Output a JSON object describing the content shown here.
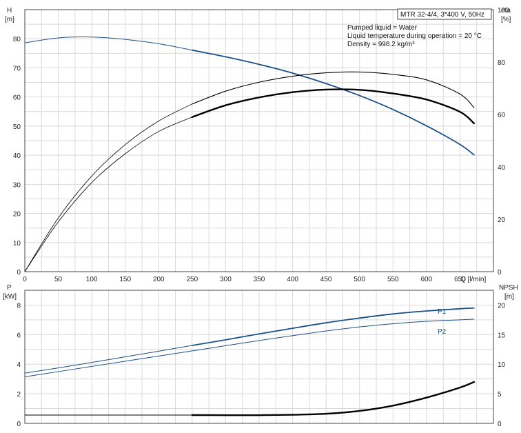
{
  "chart_data": [
    {
      "type": "line",
      "x": [
        0,
        50,
        100,
        150,
        200,
        250,
        300,
        350,
        400,
        450,
        500,
        550,
        600,
        650,
        671
      ],
      "xlabel": "Q [l/min]",
      "xlim": [
        0,
        700
      ],
      "xticks": [
        0,
        50,
        100,
        150,
        200,
        250,
        300,
        350,
        400,
        450,
        500,
        550,
        600,
        650
      ],
      "ylabel_left": "H\n[m]",
      "ylim_left": [
        0,
        90
      ],
      "yticks_left": [
        0,
        10,
        20,
        30,
        40,
        50,
        60,
        70,
        80
      ],
      "ylabel_right": "eta\n[%]",
      "ylim_right": [
        0,
        100
      ],
      "yticks_right": [
        0,
        20,
        40,
        60,
        80,
        100
      ],
      "grid": true,
      "info_box_title": "MTR 32-4/4, 3*400 V, 50Hz",
      "info_lines": [
        "Pumped liquid = Water",
        "Liquid temperature during operation = 20 °C",
        "Density = 998.2 kg/m³"
      ],
      "series": [
        {
          "axis": "left",
          "color": "#1a4f8a",
          "values": [
            78.6,
            80.3,
            80.6,
            79.8,
            78.3,
            76.1,
            73.8,
            71.2,
            68.2,
            64.6,
            60.5,
            55.7,
            50.1,
            43.7,
            40.1
          ]
        },
        {
          "axis": "right",
          "color": "#000000",
          "values": [
            0,
            20.5,
            36.5,
            48.5,
            57.5,
            64,
            68.9,
            72.3,
            74.6,
            75.9,
            76.2,
            75.3,
            73.2,
            67.8,
            62.6
          ]
        },
        {
          "axis": "right",
          "color": "#000000",
          "values": [
            0,
            19,
            34,
            45,
            53.5,
            59,
            63.5,
            66.5,
            68.5,
            69.5,
            69.4,
            68,
            65.7,
            61,
            56.6
          ]
        }
      ]
    },
    {
      "type": "line",
      "x": [
        0,
        50,
        100,
        150,
        200,
        250,
        300,
        350,
        400,
        450,
        500,
        550,
        600,
        650,
        671
      ],
      "xlim": [
        0,
        700
      ],
      "xticks": [
        0,
        50,
        100,
        150,
        200,
        250,
        300,
        350,
        400,
        450,
        500,
        550,
        600,
        650
      ],
      "ylabel_left": "P\n[kW]",
      "ylim_left": [
        0,
        9
      ],
      "yticks_left": [
        0,
        2,
        4,
        6,
        8
      ],
      "ylabel_right": "NPSH\n[m]",
      "ylim_right": [
        0,
        22.5
      ],
      "yticks_right": [
        0,
        5,
        10,
        15,
        20
      ],
      "grid": true,
      "series": [
        {
          "name": "P1",
          "axis": "left",
          "color": "#1a4f8a",
          "values": [
            3.4,
            3.75,
            4.12,
            4.5,
            4.88,
            5.27,
            5.65,
            6.05,
            6.43,
            6.8,
            7.12,
            7.4,
            7.6,
            7.75,
            7.8
          ]
        },
        {
          "name": "P2",
          "axis": "left",
          "color": "#1a4f8a",
          "values": [
            3.15,
            3.5,
            3.85,
            4.2,
            4.55,
            4.9,
            5.25,
            5.6,
            5.93,
            6.25,
            6.52,
            6.74,
            6.9,
            7.0,
            7.05
          ]
        },
        {
          "axis": "right",
          "color": "#000000",
          "values": [
            1.4,
            1.4,
            1.4,
            1.4,
            1.4,
            1.4,
            1.38,
            1.38,
            1.45,
            1.62,
            2.1,
            3.0,
            4.35,
            6.05,
            7.0
          ]
        }
      ]
    }
  ]
}
